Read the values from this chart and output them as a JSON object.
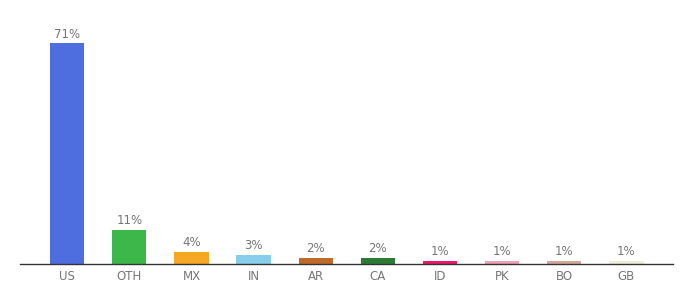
{
  "categories": [
    "US",
    "OTH",
    "MX",
    "IN",
    "AR",
    "CA",
    "ID",
    "PK",
    "BO",
    "GB"
  ],
  "values": [
    71,
    11,
    4,
    3,
    2,
    2,
    1,
    1,
    1,
    1
  ],
  "bar_colors": [
    "#4e6ee0",
    "#3cb84a",
    "#f5a623",
    "#87ceeb",
    "#c0692a",
    "#2d7a32",
    "#f0186a",
    "#f0a0b0",
    "#d4a898",
    "#eeeed8"
  ],
  "labels": [
    "71%",
    "11%",
    "4%",
    "3%",
    "2%",
    "2%",
    "1%",
    "1%",
    "1%",
    "1%"
  ],
  "ylim": [
    0,
    80
  ],
  "background_color": "#ffffff",
  "label_fontsize": 8.5,
  "tick_fontsize": 8.5,
  "bar_width": 0.55
}
